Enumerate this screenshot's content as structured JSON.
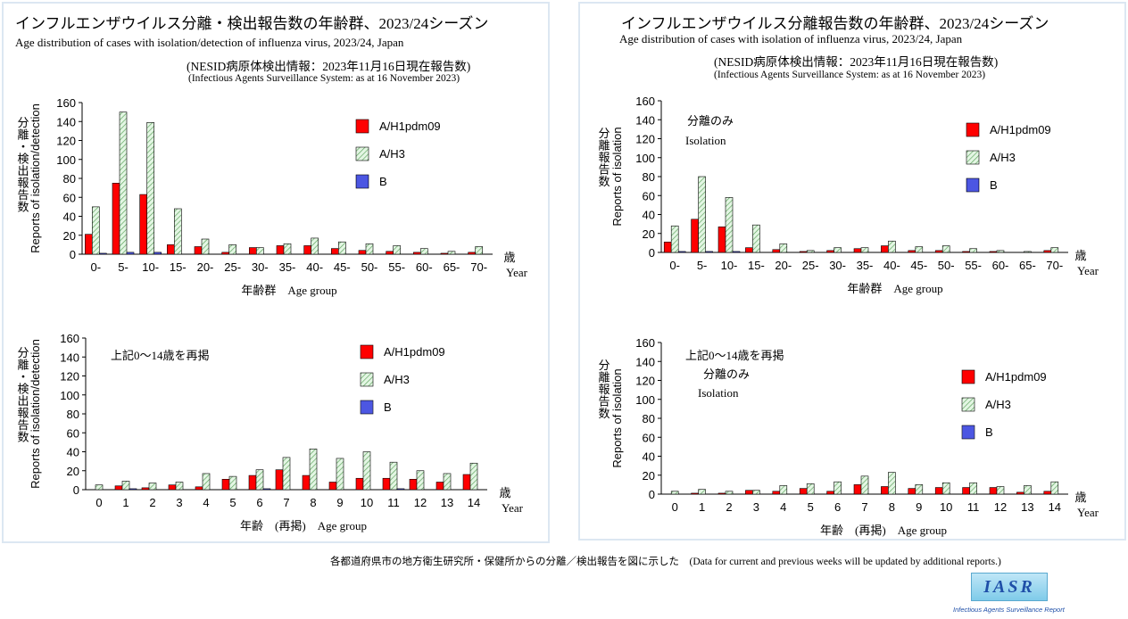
{
  "left": {
    "title_jp": "インフルエンザウイルス分離・検出報告数の年齢群、2023/24シーズン",
    "title_en": "Age distribution of cases with isolation/detection of influenza virus, 2023/24, Japan",
    "source_jp": "(NESID病原体検出情報：2023年11月16日現在報告数)",
    "source_en": "(Infectious Agents Surveillance System: as at 16 November 2023)"
  },
  "right": {
    "title_jp": "インフルエンザウイルス分離報告数の年齢群、2023/24シーズン",
    "title_en": "Age distribution of cases with isolation of influenza virus, 2023/24, Japan",
    "source_jp": "(NESID病原体検出情報：2023年11月16日現在報告数)",
    "source_en": "(Infectious Agents Surveillance System: as at 16 November 2023)"
  },
  "footer": {
    "note": "各都道府県市の地方衛生研究所・保健所からの分離／検出報告を図に示した　(Data for current and previous weeks will be updated by additional reports.)",
    "logo": "IASR",
    "logo_caption": "Infectious Agents Surveillance Report"
  },
  "colors": {
    "A/H1pdm09": "#ff0000",
    "A/H3": "#c9ebc9",
    "B": "#2b35d6"
  },
  "chart_data": [
    {
      "id": "left-top",
      "type": "bar",
      "ylabel_jp": "分離・検出報告数",
      "ylabel_en": "Reports of isolation/detection",
      "xunit_jp": "歳",
      "xunit_en": "Year",
      "xlabel": "年齢群　Age group",
      "annotation": [],
      "ylim": [
        0,
        160
      ],
      "yticks": [
        0,
        20,
        40,
        60,
        80,
        100,
        120,
        140,
        160
      ],
      "categories": [
        "0-",
        "5-",
        "10-",
        "15-",
        "20-",
        "25-",
        "30-",
        "35-",
        "40-",
        "45-",
        "50-",
        "55-",
        "60-",
        "65-",
        "70-"
      ],
      "series": [
        {
          "name": "A/H1pdm09",
          "values": [
            21,
            75,
            63,
            10,
            8,
            2,
            7,
            9,
            9,
            6,
            4,
            3,
            2,
            1,
            2
          ]
        },
        {
          "name": "A/H3",
          "values": [
            50,
            150,
            139,
            48,
            16,
            10,
            7,
            11,
            17,
            13,
            11,
            9,
            6,
            3,
            8
          ]
        },
        {
          "name": "B",
          "values": [
            1,
            2,
            2,
            0,
            0,
            0,
            0,
            0,
            0,
            0,
            0,
            0,
            0,
            0,
            0
          ]
        }
      ]
    },
    {
      "id": "left-bottom",
      "type": "bar",
      "ylabel_jp": "分離・検出報告数",
      "ylabel_en": "Reports of isolation/detection",
      "xunit_jp": "歳",
      "xunit_en": "Year",
      "xlabel": "年齢　(再掲)　Age group",
      "annotation": [
        "上記0～14歳を再掲"
      ],
      "ylim": [
        0,
        160
      ],
      "yticks": [
        0,
        20,
        40,
        60,
        80,
        100,
        120,
        140,
        160
      ],
      "categories": [
        "0",
        "1",
        "2",
        "3",
        "4",
        "5",
        "6",
        "7",
        "8",
        "9",
        "10",
        "11",
        "12",
        "13",
        "14"
      ],
      "series": [
        {
          "name": "A/H1pdm09",
          "values": [
            0,
            4,
            2,
            5,
            3,
            11,
            15,
            21,
            15,
            8,
            12,
            12,
            11,
            8,
            16
          ]
        },
        {
          "name": "A/H3",
          "values": [
            5,
            9,
            7,
            8,
            17,
            14,
            21,
            34,
            43,
            33,
            40,
            29,
            20,
            17,
            28
          ]
        },
        {
          "name": "B",
          "values": [
            0,
            1,
            0,
            0,
            0,
            0,
            1,
            0,
            0,
            0,
            0,
            1,
            0,
            0,
            0
          ]
        }
      ]
    },
    {
      "id": "right-top",
      "type": "bar",
      "ylabel_jp": "分離報告数",
      "ylabel_en": "Reports of isolation",
      "xunit_jp": "歳",
      "xunit_en": "Year",
      "xlabel": "年齢群　Age group",
      "annotation": [
        "分離のみ",
        "Isolation"
      ],
      "ylim": [
        0,
        160
      ],
      "yticks": [
        0,
        20,
        40,
        60,
        80,
        100,
        120,
        140,
        160
      ],
      "categories": [
        "0-",
        "5-",
        "10-",
        "15-",
        "20-",
        "25-",
        "30-",
        "35-",
        "40-",
        "45-",
        "50-",
        "55-",
        "60-",
        "65-",
        "70-"
      ],
      "series": [
        {
          "name": "A/H1pdm09",
          "values": [
            11,
            35,
            27,
            5,
            3,
            1,
            2,
            4,
            7,
            2,
            2,
            1,
            1,
            0,
            2
          ]
        },
        {
          "name": "A/H3",
          "values": [
            28,
            80,
            58,
            29,
            9,
            2,
            5,
            5,
            12,
            6,
            7,
            4,
            2,
            1,
            5
          ]
        },
        {
          "name": "B",
          "values": [
            1,
            1,
            1,
            0,
            0,
            0,
            0,
            0,
            0,
            0,
            0,
            0,
            0,
            0,
            0
          ]
        }
      ]
    },
    {
      "id": "right-bottom",
      "type": "bar",
      "ylabel_jp": "分離報告数",
      "ylabel_en": "Reports of isolation",
      "xunit_jp": "歳",
      "xunit_en": "Year",
      "xlabel": "年齢　(再掲)　Age group",
      "annotation": [
        "上記0～14歳を再掲",
        "分離のみ",
        "Isolation"
      ],
      "ylim": [
        0,
        160
      ],
      "yticks": [
        0,
        20,
        40,
        60,
        80,
        100,
        120,
        140,
        160
      ],
      "categories": [
        "0",
        "1",
        "2",
        "3",
        "4",
        "5",
        "6",
        "7",
        "8",
        "9",
        "10",
        "11",
        "12",
        "13",
        "14"
      ],
      "series": [
        {
          "name": "A/H1pdm09",
          "values": [
            0,
            1,
            1,
            4,
            3,
            6,
            3,
            10,
            8,
            6,
            7,
            7,
            7,
            2,
            3
          ]
        },
        {
          "name": "A/H3",
          "values": [
            3,
            5,
            3,
            4,
            9,
            11,
            13,
            19,
            23,
            10,
            12,
            12,
            8,
            9,
            13
          ]
        },
        {
          "name": "B",
          "values": [
            0,
            0,
            0,
            0,
            0,
            0,
            0,
            0,
            0,
            0,
            0,
            0,
            0,
            0,
            0
          ]
        }
      ]
    }
  ]
}
